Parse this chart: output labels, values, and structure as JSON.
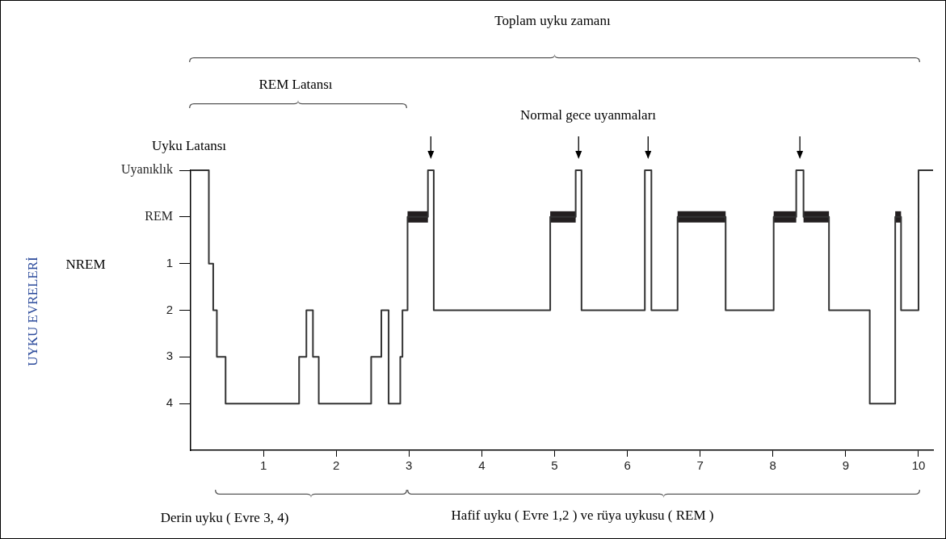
{
  "chart_data": {
    "type": "step",
    "xlim": [
      0,
      10.2
    ],
    "xticks": [
      1,
      2,
      3,
      4,
      5,
      6,
      7,
      8,
      9,
      10
    ],
    "ylim": [
      5,
      -1
    ],
    "yticks": [
      {
        "value": -1,
        "label": "Uyanıklık"
      },
      {
        "value": 0,
        "label": "REM"
      },
      1,
      2,
      3,
      4
    ],
    "series": [
      {
        "color": "#333333",
        "x": [
          0,
          0.25,
          0.31,
          0.36,
          0.48,
          1.49,
          1.59,
          1.68,
          1.76,
          2.48,
          2.62,
          2.72,
          2.88,
          2.91,
          2.98,
          3.26,
          3.34,
          4.94,
          5.29,
          5.37,
          6.24,
          6.33,
          6.69,
          7.35,
          8.01,
          8.32,
          8.42,
          8.77,
          9.33,
          9.68,
          9.76,
          10.0,
          10.2
        ],
        "values": [
          -1,
          1,
          2,
          3,
          4,
          3,
          2,
          3,
          4,
          3,
          2,
          4,
          3,
          2,
          0,
          -1,
          2,
          0,
          -1,
          2,
          -1,
          2,
          0,
          2,
          0,
          -1,
          0,
          2,
          4,
          0,
          2,
          -1,
          -1
        ]
      },
      {
        "type": "line",
        "color": "#231f20",
        "x": [
          2.98,
          3.26
        ],
        "values": [
          0,
          0
        ]
      },
      {
        "type": "line",
        "color": "#231f20",
        "x": [
          4.94,
          5.29
        ],
        "values": [
          0,
          0
        ]
      },
      {
        "type": "line",
        "color": "#231f20",
        "x": [
          6.69,
          7.35
        ],
        "values": [
          0,
          0
        ]
      },
      {
        "type": "line",
        "color": "#231f20",
        "x": [
          8.01,
          8.32
        ],
        "values": [
          0,
          0
        ]
      },
      {
        "type": "line",
        "color": "#231f20",
        "x": [
          8.42,
          8.77
        ],
        "values": [
          0,
          0
        ]
      },
      {
        "type": "line",
        "color": "#231f20",
        "x": [
          9.68,
          9.76
        ],
        "values": [
          0,
          0
        ]
      }
    ],
    "annotations": [
      "Toplam uyku zamanı",
      "REM Latansı",
      "Normal gece uyanmaları",
      "Uyku Latansı",
      "NREM",
      "UYKU EVRELERİ",
      "Derin uyku ( Evre 3, 4)",
      "Hafif uyku ( Evre 1,2 ) ve rüya uykusu ( REM )"
    ],
    "grid": false,
    "legend": false,
    "marker": "none",
    "line_style": "solid"
  }
}
